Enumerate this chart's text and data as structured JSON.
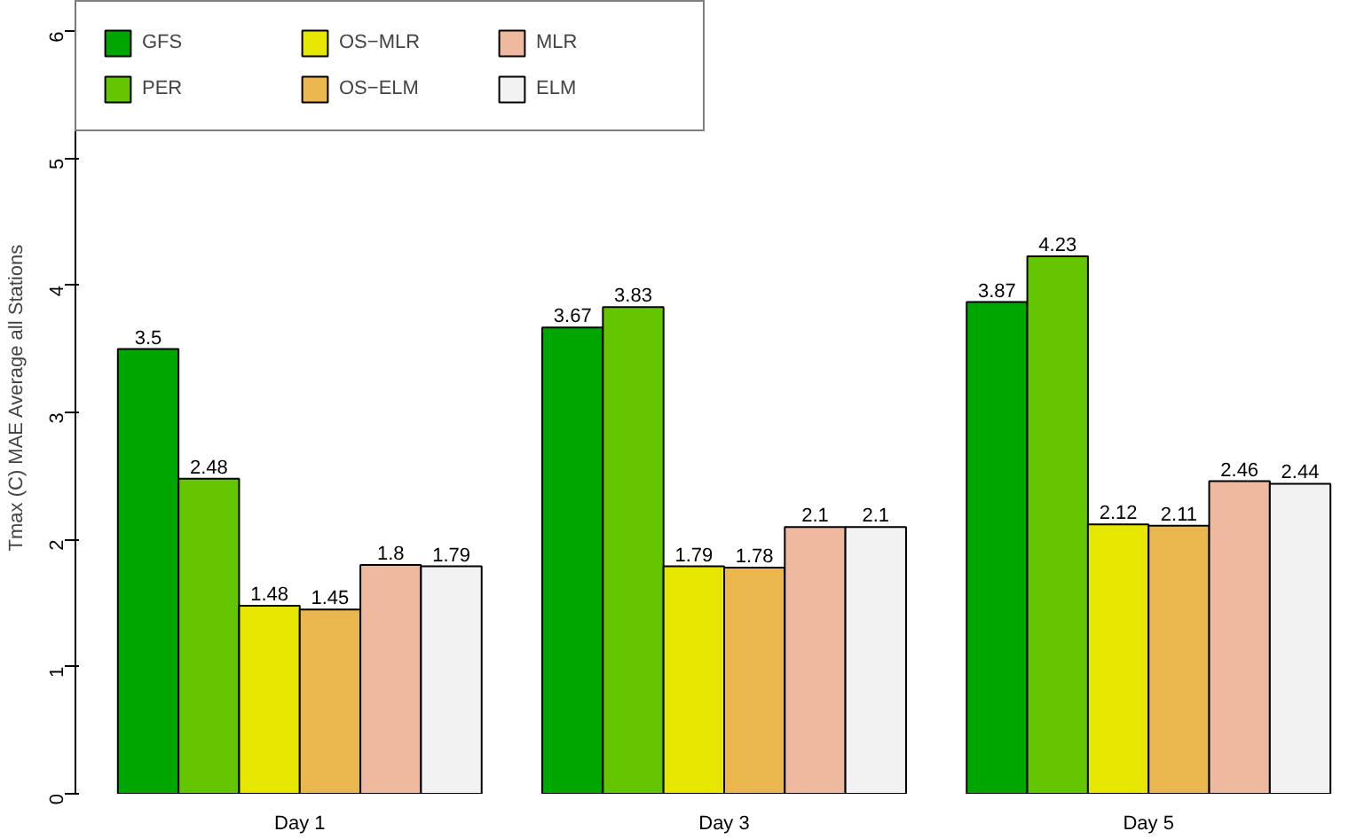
{
  "chart_data": {
    "type": "bar",
    "ylabel": "Tmax (C) MAE Average all Stations",
    "categories": [
      "Day 1",
      "Day 3",
      "Day 5"
    ],
    "series": [
      {
        "name": "GFS",
        "color": "#00a600",
        "values": [
          3.5,
          3.67,
          3.87
        ]
      },
      {
        "name": "PER",
        "color": "#63c600",
        "values": [
          2.48,
          3.83,
          4.23
        ]
      },
      {
        "name": "OS−MLR",
        "color": "#e6e600",
        "values": [
          1.48,
          1.79,
          2.12
        ]
      },
      {
        "name": "OS−ELM",
        "color": "#eab64e",
        "values": [
          1.45,
          1.78,
          2.11
        ]
      },
      {
        "name": "MLR",
        "color": "#eeb99f",
        "values": [
          1.8,
          2.1,
          2.46
        ]
      },
      {
        "name": "ELM",
        "color": "#f2f2f2",
        "values": [
          1.79,
          2.1,
          2.44
        ]
      }
    ],
    "ylim": [
      0,
      6.24
    ],
    "yticks": [
      0,
      1,
      2,
      3,
      4,
      5,
      6
    ],
    "data_labels": true,
    "legend": "top left",
    "grid": false
  }
}
